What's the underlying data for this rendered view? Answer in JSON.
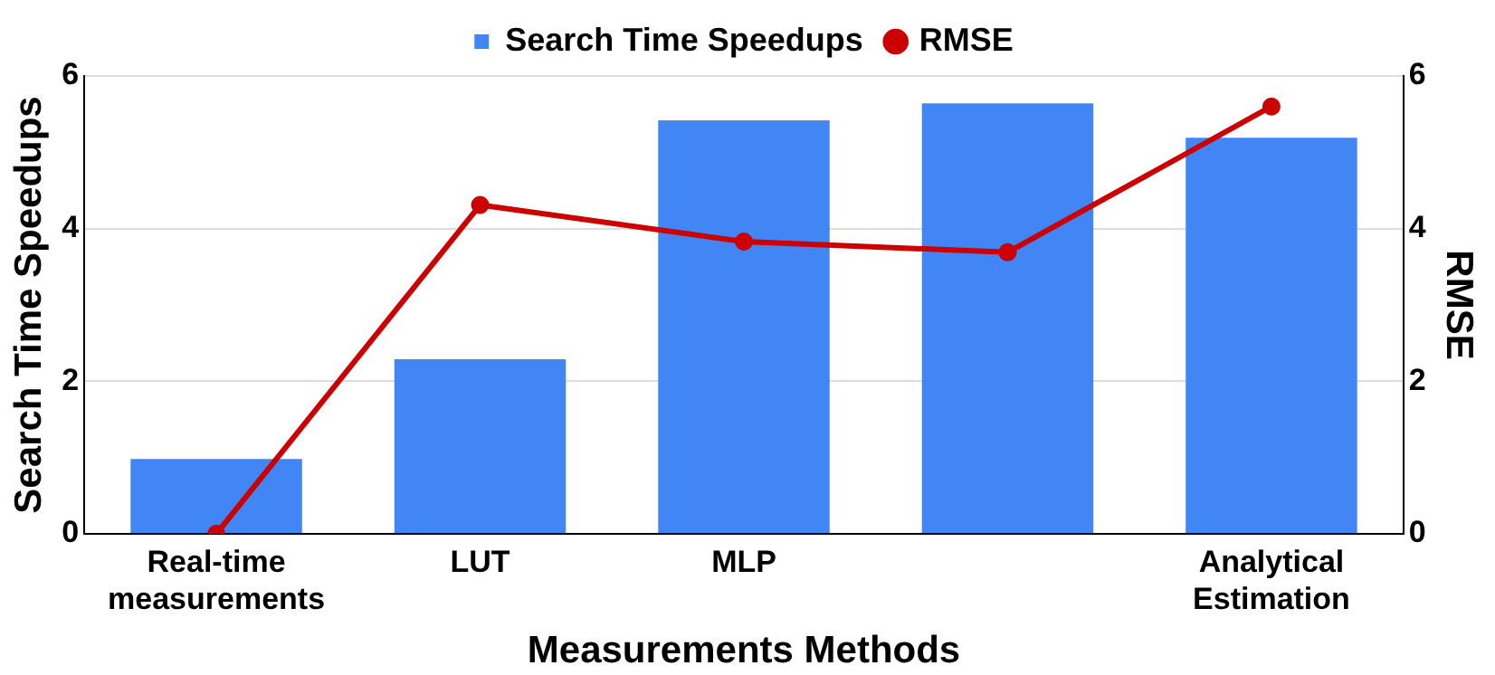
{
  "chart_data": {
    "type": "bar",
    "xlabel": "Measurements Methods",
    "ylabel": "Search Time Speedups",
    "y2label": "RMSE",
    "categories": [
      "Real-time\nmeasurements",
      "LUT",
      "MLP",
      null,
      "Analytical\nEstimation"
    ],
    "series": [
      {
        "name": "Search Time Speedups",
        "color": "#4285f4",
        "values": [
          0.98,
          2.29,
          5.42,
          5.64,
          5.19
        ]
      },
      {
        "name": "RMSE",
        "type": "line",
        "axis": "y2",
        "color": "#cc0000",
        "marker": "circle",
        "values": [
          0,
          4.31,
          3.83,
          3.69,
          5.6
        ]
      }
    ],
    "ylim": [
      0,
      6
    ],
    "yticks": [
      0,
      2,
      4,
      6
    ],
    "y2lim": [
      0,
      6
    ],
    "y2ticks": [
      0,
      2,
      4,
      6
    ],
    "grid": "y",
    "legend": "top"
  }
}
